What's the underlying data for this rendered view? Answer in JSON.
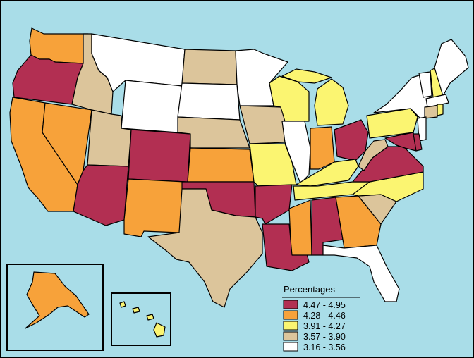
{
  "map": {
    "type": "choropleth",
    "region": "United States",
    "ocean_color": "#a9dde8",
    "border_color": "#000000"
  },
  "legend": {
    "title": "Percentages",
    "items": [
      {
        "label": "4.47 - 4.95",
        "color": "#b22f52"
      },
      {
        "label": "4.28 - 4.46",
        "color": "#f7a23a"
      },
      {
        "label": "3.91 - 4.27",
        "color": "#fbf571"
      },
      {
        "label": "3.57 - 3.90",
        "color": "#dcc59b"
      },
      {
        "label": "3.16 - 3.56",
        "color": "#ffffff"
      }
    ]
  },
  "states": {
    "WA": 1,
    "OR": 0,
    "CA": 1,
    "NV": 1,
    "ID": 3,
    "MT": 4,
    "WY": 4,
    "UT": 3,
    "AZ": 0,
    "CO": 0,
    "NM": 1,
    "ND": 3,
    "SD": 4,
    "NE": 3,
    "KS": 1,
    "OK": 0,
    "TX": 3,
    "MN": 4,
    "IA": 3,
    "MO": 2,
    "AR": 0,
    "LA": 0,
    "WI": 2,
    "IL": 4,
    "MI": 2,
    "IN": 1,
    "OH": 0,
    "KY": 2,
    "TN": 2,
    "MS": 1,
    "AL": 0,
    "GA": 1,
    "FL": 4,
    "SC": 3,
    "NC": 2,
    "VA": 0,
    "WV": 3,
    "PA": 2,
    "NY": 4,
    "VT": 4,
    "NH": 2,
    "ME": 4,
    "MA": 4,
    "CT": 3,
    "RI": 2,
    "NJ": 4,
    "DE": 0,
    "MD": 0,
    "AK": 1,
    "HI": 2
  }
}
